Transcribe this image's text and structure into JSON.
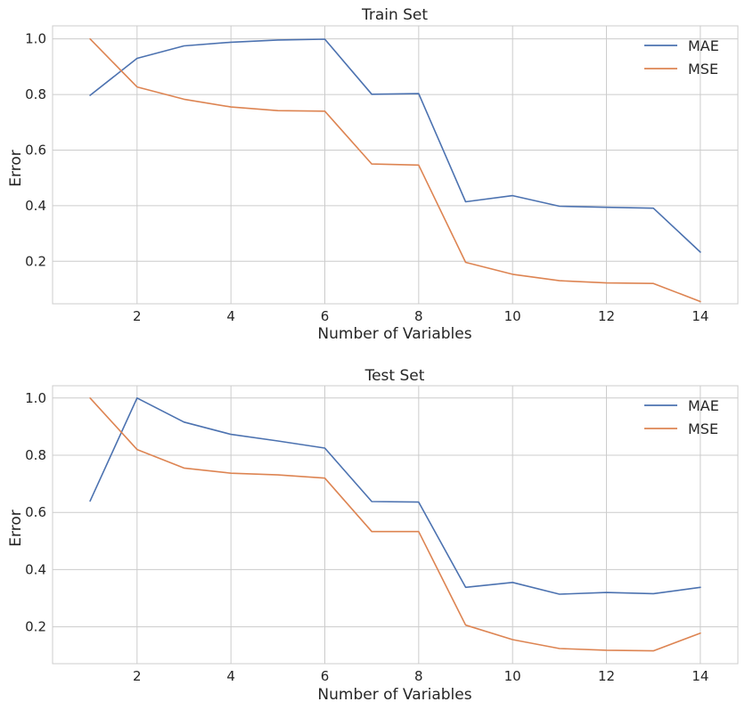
{
  "chart_data": [
    {
      "type": "line",
      "title": "Train Set",
      "xlabel": "Number of Variables",
      "ylabel": "Error",
      "x": [
        1,
        2,
        3,
        4,
        5,
        6,
        7,
        8,
        9,
        10,
        11,
        12,
        13,
        14
      ],
      "xlim": [
        0.2,
        14.8
      ],
      "ylim": [
        0.047,
        1.047
      ],
      "xticks": [
        2,
        4,
        6,
        8,
        10,
        12,
        14
      ],
      "yticks": [
        0.2,
        0.4,
        0.6,
        0.8,
        1.0
      ],
      "xtick_labels": [
        "2",
        "4",
        "6",
        "8",
        "10",
        "12",
        "14"
      ],
      "ytick_labels": [
        "0.2",
        "0.4",
        "0.6",
        "0.8",
        "1.0"
      ],
      "grid": true,
      "legend_position": "top-right",
      "series": [
        {
          "name": "MAE",
          "color": "#4c72b0",
          "values": [
            0.797,
            0.93,
            0.975,
            0.988,
            0.996,
            0.999,
            0.801,
            0.803,
            0.414,
            0.436,
            0.398,
            0.394,
            0.391,
            0.233
          ]
        },
        {
          "name": "MSE",
          "color": "#dd8452",
          "values": [
            1.0,
            0.827,
            0.783,
            0.755,
            0.742,
            0.74,
            0.55,
            0.546,
            0.196,
            0.153,
            0.13,
            0.122,
            0.12,
            0.055
          ]
        }
      ]
    },
    {
      "type": "line",
      "title": "Test Set",
      "xlabel": "Number of Variables",
      "ylabel": "Error",
      "x": [
        1,
        2,
        3,
        4,
        5,
        6,
        7,
        8,
        9,
        10,
        11,
        12,
        13,
        14
      ],
      "xlim": [
        0.2,
        14.8
      ],
      "ylim": [
        0.071,
        1.043
      ],
      "xticks": [
        2,
        4,
        6,
        8,
        10,
        12,
        14
      ],
      "yticks": [
        0.2,
        0.4,
        0.6,
        0.8,
        1.0
      ],
      "xtick_labels": [
        "2",
        "4",
        "6",
        "8",
        "10",
        "12",
        "14"
      ],
      "ytick_labels": [
        "0.2",
        "0.4",
        "0.6",
        "0.8",
        "1.0"
      ],
      "grid": true,
      "legend_position": "top-right",
      "series": [
        {
          "name": "MAE",
          "color": "#4c72b0",
          "values": [
            0.64,
            1.0,
            0.916,
            0.873,
            0.85,
            0.825,
            0.638,
            0.636,
            0.338,
            0.355,
            0.314,
            0.32,
            0.316,
            0.338
          ]
        },
        {
          "name": "MSE",
          "color": "#dd8452",
          "values": [
            1.0,
            0.82,
            0.755,
            0.737,
            0.731,
            0.72,
            0.533,
            0.533,
            0.206,
            0.155,
            0.124,
            0.118,
            0.116,
            0.178
          ]
        }
      ]
    }
  ]
}
